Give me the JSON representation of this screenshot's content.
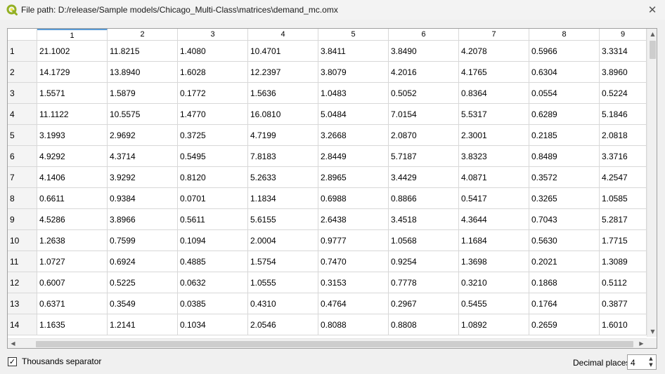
{
  "window": {
    "title": "File path: D:/release/Sample models/Chicago_Multi-Class\\matrices\\demand_mc.omx",
    "icon": "qgis-icon",
    "close_glyph": "✕"
  },
  "table": {
    "columns": [
      "1",
      "2",
      "3",
      "4",
      "5",
      "6",
      "7",
      "8",
      "9"
    ],
    "rows": [
      {
        "label": "1",
        "cells": [
          "21.1002",
          "11.8215",
          "1.4080",
          "10.4701",
          "3.8411",
          "3.8490",
          "4.2078",
          "0.5966",
          "3.3314"
        ]
      },
      {
        "label": "2",
        "cells": [
          "14.1729",
          "13.8940",
          "1.6028",
          "12.2397",
          "3.8079",
          "4.2016",
          "4.1765",
          "0.6304",
          "3.8960"
        ]
      },
      {
        "label": "3",
        "cells": [
          "1.5571",
          "1.5879",
          "0.1772",
          "1.5636",
          "1.0483",
          "0.5052",
          "0.8364",
          "0.0554",
          "0.5224"
        ]
      },
      {
        "label": "4",
        "cells": [
          "11.1122",
          "10.5575",
          "1.4770",
          "16.0810",
          "5.0484",
          "7.0154",
          "5.5317",
          "0.6289",
          "5.1846"
        ]
      },
      {
        "label": "5",
        "cells": [
          "3.1993",
          "2.9692",
          "0.3725",
          "4.7199",
          "3.2668",
          "2.0870",
          "2.3001",
          "0.2185",
          "2.0818"
        ]
      },
      {
        "label": "6",
        "cells": [
          "4.9292",
          "4.3714",
          "0.5495",
          "7.8183",
          "2.8449",
          "5.7187",
          "3.8323",
          "0.8489",
          "3.3716"
        ]
      },
      {
        "label": "7",
        "cells": [
          "4.1406",
          "3.9292",
          "0.8120",
          "5.2633",
          "2.8965",
          "3.4429",
          "4.0871",
          "0.3572",
          "4.2547"
        ]
      },
      {
        "label": "8",
        "cells": [
          "0.6611",
          "0.9384",
          "0.0701",
          "1.1834",
          "0.6988",
          "0.8866",
          "0.5417",
          "0.3265",
          "1.0585"
        ]
      },
      {
        "label": "9",
        "cells": [
          "4.5286",
          "3.8966",
          "0.5611",
          "5.6155",
          "2.6438",
          "3.4518",
          "4.3644",
          "0.7043",
          "5.2817"
        ]
      },
      {
        "label": "10",
        "cells": [
          "1.2638",
          "0.7599",
          "0.1094",
          "2.0004",
          "0.9777",
          "1.0568",
          "1.1684",
          "0.5630",
          "1.7715"
        ]
      },
      {
        "label": "11",
        "cells": [
          "1.0727",
          "0.6924",
          "0.4885",
          "1.5754",
          "0.7470",
          "0.9254",
          "1.3698",
          "0.2021",
          "1.3089"
        ]
      },
      {
        "label": "12",
        "cells": [
          "0.6007",
          "0.5225",
          "0.0632",
          "1.0555",
          "0.3153",
          "0.7778",
          "0.3210",
          "0.1868",
          "0.5112"
        ]
      },
      {
        "label": "13",
        "cells": [
          "0.6371",
          "0.3549",
          "0.0385",
          "0.4310",
          "0.4764",
          "0.2967",
          "0.5455",
          "0.1764",
          "0.3877"
        ]
      },
      {
        "label": "14",
        "cells": [
          "1.1635",
          "1.2141",
          "0.1034",
          "2.0546",
          "0.8088",
          "0.8808",
          "1.0892",
          "0.2659",
          "1.6010"
        ]
      }
    ]
  },
  "footer": {
    "thousands_separator_label": "Thousands separator",
    "thousands_separator_checked": true,
    "check_glyph": "✓",
    "decimal_places_label": "Decimal places",
    "decimal_places_value": "4"
  },
  "colors": {
    "accent": "#5b9bd5",
    "qgis_green": "#93b023",
    "qgis_yellow": "#f0e64a"
  }
}
